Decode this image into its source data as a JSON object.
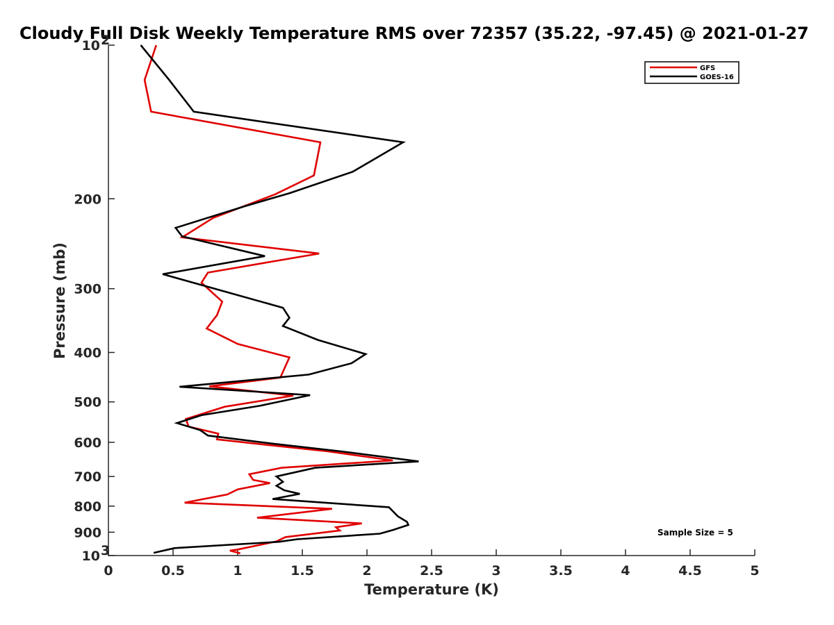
{
  "chart_data": {
    "type": "line",
    "title": "Cloudy Full Disk Weekly Temperature RMS over 72357 (35.22, -97.45) @ 2021-01-27",
    "xlabel": "Temperature (K)",
    "ylabel": "Pressure (mb)",
    "xlim": [
      0,
      5
    ],
    "ylim": [
      100,
      1000
    ],
    "y_scale": "log",
    "y_reversed": true,
    "grid": false,
    "legend_position": "top-right",
    "x_ticks": [
      0,
      0.5,
      1,
      1.5,
      2,
      2.5,
      3,
      3.5,
      4,
      4.5,
      5
    ],
    "x_tick_labels": [
      "0",
      "0.5",
      "1",
      "1.5",
      "2",
      "2.5",
      "3",
      "3.5",
      "4",
      "4.5",
      "5"
    ],
    "y_ticks": [
      {
        "value": 100,
        "label": "10",
        "sup": "2"
      },
      {
        "value": 200,
        "label": "200",
        "sup": ""
      },
      {
        "value": 300,
        "label": "300",
        "sup": ""
      },
      {
        "value": 400,
        "label": "400",
        "sup": ""
      },
      {
        "value": 500,
        "label": "500",
        "sup": ""
      },
      {
        "value": 600,
        "label": "600",
        "sup": ""
      },
      {
        "value": 700,
        "label": "700",
        "sup": ""
      },
      {
        "value": 800,
        "label": "800",
        "sup": ""
      },
      {
        "value": 900,
        "label": "900",
        "sup": ""
      },
      {
        "value": 1000,
        "label": "10",
        "sup": "3"
      }
    ],
    "annotation": "Sample Size = 5",
    "series": [
      {
        "name": "GFS",
        "color": "#e00000",
        "points": [
          [
            0.37,
            100
          ],
          [
            0.28,
            117
          ],
          [
            0.33,
            135
          ],
          [
            1.64,
            155
          ],
          [
            1.59,
            180
          ],
          [
            1.29,
            196
          ],
          [
            0.81,
            218
          ],
          [
            0.57,
            238
          ],
          [
            1.63,
            256
          ],
          [
            0.77,
            279
          ],
          [
            0.72,
            292
          ],
          [
            0.88,
            318
          ],
          [
            0.84,
            338
          ],
          [
            0.76,
            359
          ],
          [
            1.0,
            385
          ],
          [
            1.4,
            409
          ],
          [
            1.33,
            448
          ],
          [
            0.78,
            466
          ],
          [
            1.43,
            486
          ],
          [
            0.9,
            511
          ],
          [
            0.6,
            540
          ],
          [
            0.62,
            559
          ],
          [
            0.85,
            577
          ],
          [
            0.84,
            592
          ],
          [
            1.2,
            606
          ],
          [
            1.7,
            625
          ],
          [
            2.2,
            651
          ],
          [
            1.34,
            673
          ],
          [
            1.09,
            693
          ],
          [
            1.12,
            711
          ],
          [
            1.25,
            721
          ],
          [
            1.0,
            742
          ],
          [
            0.92,
            759
          ],
          [
            0.59,
            788
          ],
          [
            1.73,
            810
          ],
          [
            1.15,
            843
          ],
          [
            1.96,
            865
          ],
          [
            1.76,
            880
          ],
          [
            1.79,
            893
          ],
          [
            1.37,
            920
          ],
          [
            1.3,
            938
          ],
          [
            1.0,
            973
          ],
          [
            0.94,
            978
          ],
          [
            1.02,
            990
          ]
        ]
      },
      {
        "name": "GOES-16",
        "color": "#000000",
        "points": [
          [
            0.25,
            100
          ],
          [
            0.47,
            117
          ],
          [
            0.66,
            135
          ],
          [
            2.28,
            155
          ],
          [
            1.89,
            177
          ],
          [
            1.4,
            195
          ],
          [
            1.05,
            207
          ],
          [
            0.52,
            228
          ],
          [
            0.57,
            237
          ],
          [
            1.21,
            259
          ],
          [
            0.42,
            281
          ],
          [
            1.35,
            327
          ],
          [
            1.4,
            342
          ],
          [
            1.35,
            355
          ],
          [
            1.62,
            378
          ],
          [
            1.99,
            403
          ],
          [
            1.88,
            420
          ],
          [
            1.55,
            442
          ],
          [
            0.55,
            467
          ],
          [
            1.56,
            485
          ],
          [
            1.17,
            509
          ],
          [
            0.72,
            531
          ],
          [
            0.53,
            550
          ],
          [
            0.71,
            568
          ],
          [
            0.77,
            582
          ],
          [
            1.28,
            604
          ],
          [
            1.8,
            625
          ],
          [
            2.4,
            654
          ],
          [
            1.6,
            673
          ],
          [
            1.3,
            700
          ],
          [
            1.35,
            717
          ],
          [
            1.3,
            730
          ],
          [
            1.36,
            745
          ],
          [
            1.48,
            757
          ],
          [
            1.27,
            775
          ],
          [
            2.17,
            804
          ],
          [
            2.24,
            838
          ],
          [
            2.31,
            859
          ],
          [
            2.32,
            871
          ],
          [
            2.2,
            891
          ],
          [
            2.1,
            906
          ],
          [
            1.46,
            929
          ],
          [
            1.32,
            940
          ],
          [
            0.51,
            967
          ],
          [
            0.35,
            988
          ]
        ]
      }
    ]
  }
}
